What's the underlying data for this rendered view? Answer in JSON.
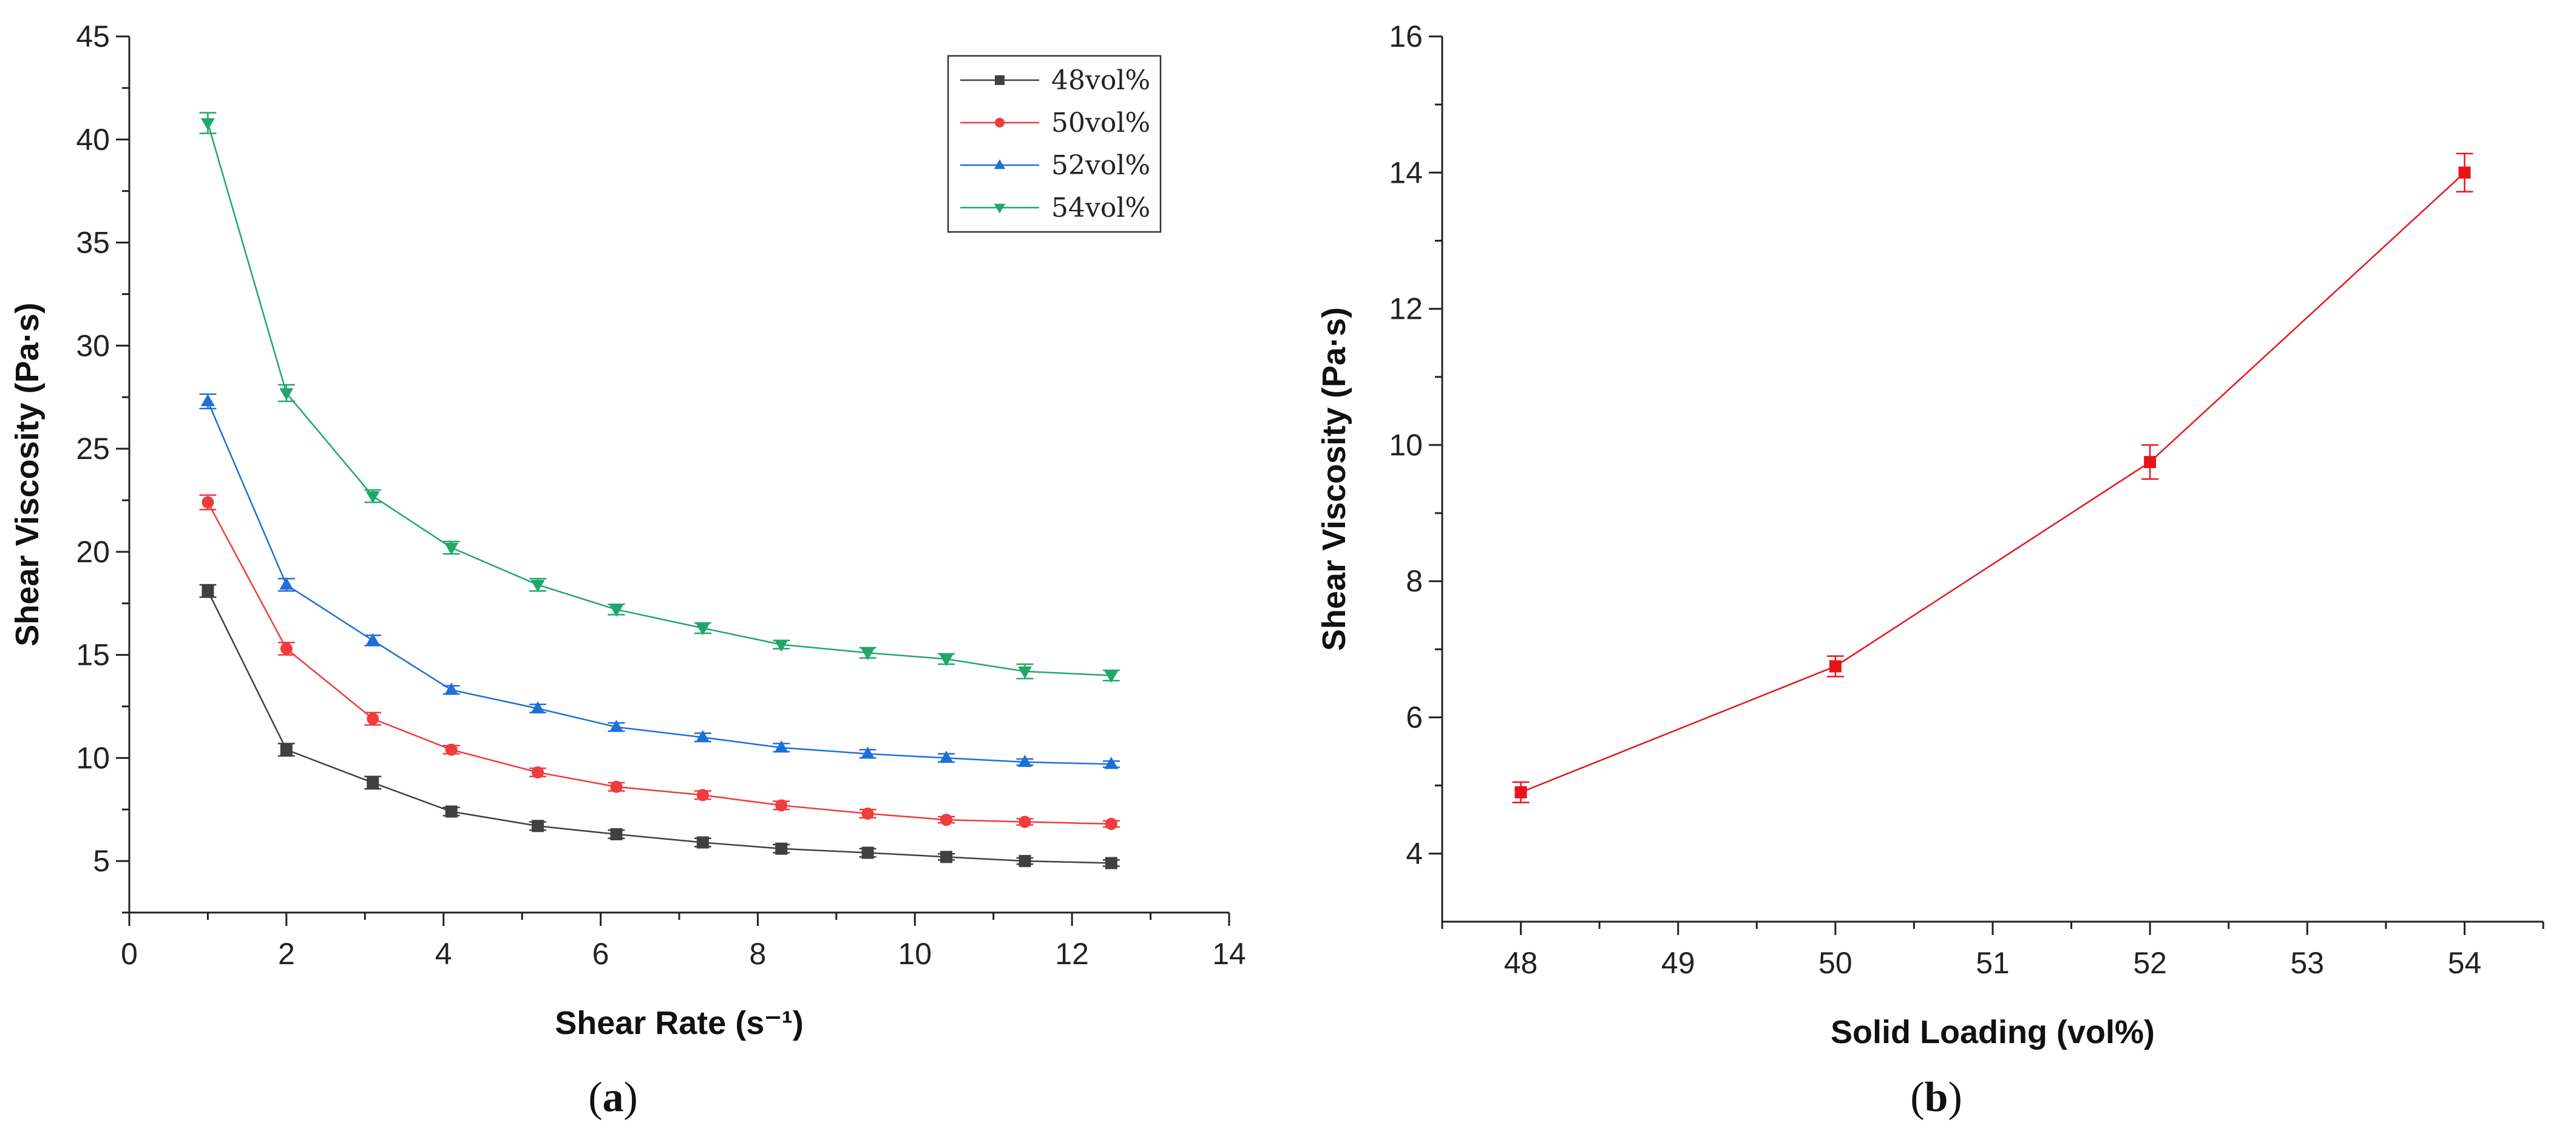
{
  "panel_labels": {
    "a": "(a)",
    "b": "(b)"
  },
  "chart_data": [
    {
      "type": "line",
      "panel": "a",
      "xlabel": "Shear Rate (s⁻¹)",
      "ylabel": "Shear Viscosity (Pa·s)",
      "xlim": [
        0,
        14
      ],
      "ylim": [
        2.5,
        45
      ],
      "xticks": [
        0,
        2,
        4,
        6,
        8,
        10,
        12,
        14
      ],
      "yticks": [
        5,
        10,
        15,
        20,
        25,
        30,
        35,
        40,
        45
      ],
      "grid": false,
      "legend_position": "top-right",
      "x": [
        1.0,
        2.0,
        3.1,
        4.1,
        5.2,
        6.2,
        7.3,
        8.3,
        9.4,
        10.4,
        11.4,
        12.5
      ],
      "series": [
        {
          "name": "48vol%",
          "color": "#404040",
          "marker": "square",
          "values": [
            18.1,
            10.4,
            8.8,
            7.4,
            6.7,
            6.3,
            5.9,
            5.6,
            5.4,
            5.2,
            5.0,
            4.9
          ],
          "errors": [
            0.3,
            0.3,
            0.3,
            0.2,
            0.2,
            0.2,
            0.2,
            0.2,
            0.2,
            0.15,
            0.15,
            0.15
          ]
        },
        {
          "name": "50vol%",
          "color": "#f03c3c",
          "marker": "circle",
          "values": [
            22.4,
            15.3,
            11.9,
            10.4,
            9.3,
            8.6,
            8.2,
            7.7,
            7.3,
            7.0,
            6.9,
            6.8
          ],
          "errors": [
            0.35,
            0.3,
            0.3,
            0.2,
            0.2,
            0.2,
            0.2,
            0.2,
            0.2,
            0.15,
            0.15,
            0.15
          ]
        },
        {
          "name": "52vol%",
          "color": "#1f6fd6",
          "marker": "triangle-up",
          "values": [
            27.3,
            18.4,
            15.7,
            13.3,
            12.4,
            11.5,
            11.0,
            10.5,
            10.2,
            10.0,
            9.8,
            9.7
          ],
          "errors": [
            0.35,
            0.3,
            0.25,
            0.2,
            0.2,
            0.2,
            0.2,
            0.2,
            0.2,
            0.2,
            0.15,
            0.15
          ]
        },
        {
          "name": "54vol%",
          "color": "#21a66b",
          "marker": "triangle-down",
          "values": [
            40.8,
            27.7,
            22.7,
            20.2,
            18.4,
            17.2,
            16.3,
            15.5,
            15.1,
            14.8,
            14.2,
            14.0
          ],
          "errors": [
            0.5,
            0.4,
            0.3,
            0.3,
            0.3,
            0.25,
            0.25,
            0.2,
            0.25,
            0.25,
            0.35,
            0.25
          ]
        }
      ]
    },
    {
      "type": "line",
      "panel": "b",
      "xlabel": "Solid Loading (vol%)",
      "ylabel": "Shear Viscosity (Pa·s)",
      "xlim": [
        47.5,
        54.5
      ],
      "ylim": [
        3,
        16
      ],
      "xticks": [
        48,
        49,
        50,
        51,
        52,
        53,
        54
      ],
      "yticks": [
        4,
        6,
        8,
        10,
        12,
        14,
        16
      ],
      "grid": false,
      "series": [
        {
          "name": "",
          "color": "#e8141c",
          "marker": "square",
          "x": [
            48,
            50,
            52,
            54
          ],
          "values": [
            4.9,
            6.75,
            9.75,
            14.0
          ],
          "errors": [
            0.15,
            0.15,
            0.25,
            0.28
          ]
        }
      ]
    }
  ]
}
